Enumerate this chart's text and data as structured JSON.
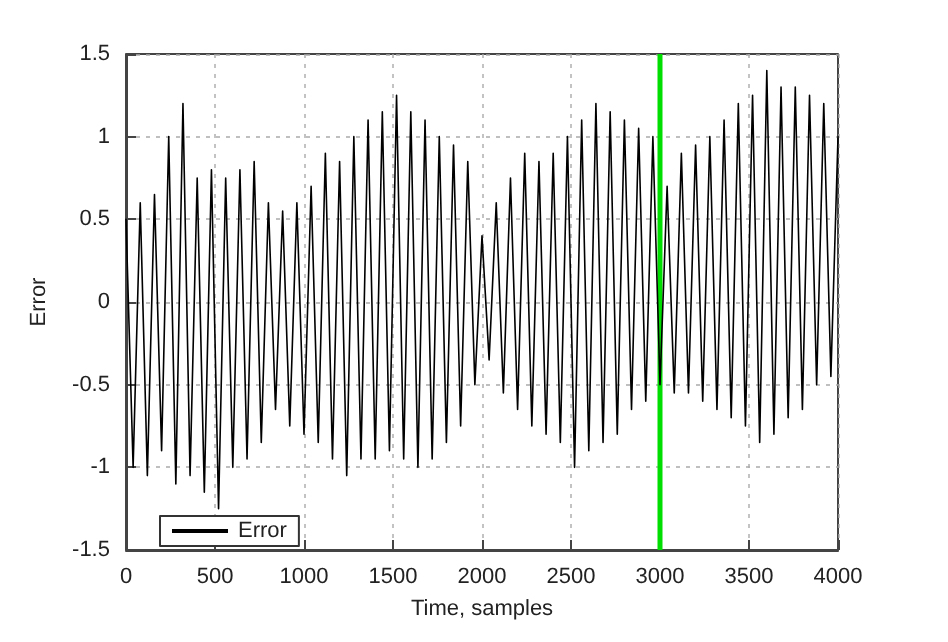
{
  "chart_data": {
    "type": "line",
    "xlabel": "Time, samples",
    "ylabel": "Error",
    "x": [
      0,
      40,
      80,
      120,
      160,
      200,
      240,
      280,
      320,
      360,
      400,
      440,
      480,
      520,
      560,
      600,
      640,
      680,
      720,
      760,
      800,
      840,
      880,
      920,
      960,
      1000,
      1040,
      1080,
      1120,
      1160,
      1200,
      1240,
      1280,
      1320,
      1360,
      1400,
      1440,
      1480,
      1520,
      1560,
      1600,
      1640,
      1680,
      1720,
      1760,
      1800,
      1840,
      1880,
      1920,
      1960,
      2000,
      2040,
      2080,
      2120,
      2160,
      2200,
      2240,
      2280,
      2320,
      2360,
      2400,
      2440,
      2480,
      2520,
      2560,
      2600,
      2640,
      2680,
      2720,
      2760,
      2800,
      2840,
      2880,
      2920,
      2960,
      3000,
      3040,
      3080,
      3120,
      3160,
      3200,
      3240,
      3280,
      3320,
      3360,
      3400,
      3440,
      3480,
      3520,
      3560,
      3600,
      3640,
      3680,
      3720,
      3760,
      3800,
      3840,
      3880,
      3920,
      3960,
      4000
    ],
    "series": [
      {
        "name": "Error",
        "color": "#000000",
        "values": [
          0.5,
          -1.0,
          0.6,
          -1.05,
          0.65,
          -0.9,
          1.0,
          -1.1,
          1.2,
          -1.05,
          0.75,
          -1.15,
          0.8,
          -1.25,
          0.75,
          -1.0,
          0.8,
          -0.95,
          0.85,
          -0.85,
          0.6,
          -0.65,
          0.55,
          -0.75,
          0.6,
          -0.8,
          0.7,
          -0.85,
          0.9,
          -0.95,
          0.85,
          -1.05,
          1.0,
          -0.95,
          1.1,
          -0.95,
          1.15,
          -0.9,
          1.25,
          -0.95,
          1.15,
          -1.0,
          1.1,
          -0.95,
          1.0,
          -0.85,
          0.95,
          -0.75,
          0.85,
          -0.5,
          0.4,
          -0.35,
          0.6,
          -0.55,
          0.75,
          -0.65,
          0.9,
          -0.75,
          0.85,
          -0.8,
          0.9,
          -0.85,
          1.0,
          -1.0,
          1.1,
          -0.9,
          1.2,
          -0.85,
          1.15,
          -0.8,
          1.1,
          -0.65,
          1.05,
          -0.6,
          1.0,
          -0.5,
          0.7,
          -0.55,
          0.9,
          -0.55,
          0.95,
          -0.6,
          1.0,
          -0.65,
          1.1,
          -0.7,
          1.2,
          -0.75,
          1.25,
          -0.85,
          1.4,
          -0.8,
          1.3,
          -0.7,
          1.3,
          -0.65,
          1.25,
          -0.5,
          1.2,
          -0.45,
          1.0
        ]
      }
    ],
    "xlim": [
      0,
      4000
    ],
    "xticks": [
      0,
      500,
      1000,
      1500,
      2000,
      2500,
      3000,
      3500,
      4000
    ],
    "ylim": [
      -1.5,
      1.5
    ],
    "yticks": [
      -1.5,
      -1,
      -0.5,
      0,
      0.5,
      1,
      1.5
    ],
    "ref_lines": [
      {
        "axis": "x",
        "value": 3000,
        "color": "#00dd00"
      }
    ],
    "grid": true,
    "legend": "bottom left",
    "marker": "none"
  }
}
